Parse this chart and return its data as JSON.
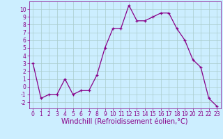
{
  "x": [
    0,
    1,
    2,
    3,
    4,
    5,
    6,
    7,
    8,
    9,
    10,
    11,
    12,
    13,
    14,
    15,
    16,
    17,
    18,
    19,
    20,
    21,
    22,
    23
  ],
  "y": [
    3,
    -1.5,
    -1,
    -1,
    1,
    -1,
    -0.5,
    -0.5,
    1.5,
    5,
    7.5,
    7.5,
    10.5,
    8.5,
    8.5,
    9,
    9.5,
    9.5,
    7.5,
    6,
    3.5,
    2.5,
    -1.5,
    -2.5
  ],
  "line_color": "#880088",
  "marker": "+",
  "marker_size": 3,
  "bg_color": "#cceeff",
  "grid_color": "#aacccc",
  "xlabel": "Windchill (Refroidissement éolien,°C)",
  "xlabel_fontsize": 7,
  "xlim": [
    -0.5,
    23.5
  ],
  "ylim": [
    -2.8,
    11
  ],
  "yticks": [
    -2,
    -1,
    0,
    1,
    2,
    3,
    4,
    5,
    6,
    7,
    8,
    9,
    10
  ],
  "xticks": [
    0,
    1,
    2,
    3,
    4,
    5,
    6,
    7,
    8,
    9,
    10,
    11,
    12,
    13,
    14,
    15,
    16,
    17,
    18,
    19,
    20,
    21,
    22,
    23
  ],
  "tick_fontsize": 5.5,
  "line_width": 0.9
}
